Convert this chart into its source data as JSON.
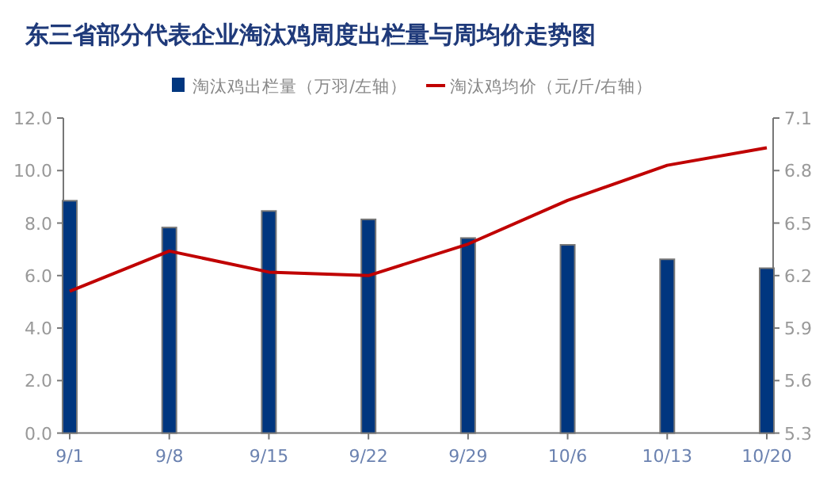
{
  "chart_data": {
    "type": "bar",
    "title": "东三省部分代表企业淘汰鸡周度出栏量与周均价走势图",
    "categories": [
      "9/1",
      "9/8",
      "9/15",
      "9/22",
      "9/29",
      "10/6",
      "10/13",
      "10/20"
    ],
    "series": [
      {
        "name": "淘汰鸡出栏量（万羽/左轴）",
        "color": "#00367f",
        "values": [
          8.85,
          7.83,
          8.46,
          8.14,
          7.43,
          7.17,
          6.62,
          6.28
        ]
      },
      {
        "name": "淘汰鸡均价（元/斤/右轴）",
        "type": "line",
        "axis": "y2",
        "color": "#c00000",
        "values": [
          6.11,
          6.34,
          6.22,
          6.2,
          6.38,
          6.63,
          6.83,
          6.93
        ]
      }
    ],
    "ylim": [
      0,
      12
    ],
    "yticks": [
      {
        "value": 0,
        "label": "0.0"
      },
      {
        "value": 2,
        "label": "2.0"
      },
      {
        "value": 4,
        "label": "4.0"
      },
      {
        "value": 6,
        "label": "6.0"
      },
      {
        "value": 8,
        "label": "8.0"
      },
      {
        "value": 10,
        "label": "10.0"
      },
      {
        "value": 12,
        "label": "12.0"
      }
    ],
    "y2lim": [
      5.3,
      7.1
    ],
    "y2ticks": [
      5.3,
      5.6,
      5.9,
      6.2,
      6.5,
      6.8,
      7.1
    ],
    "legend": "top",
    "grid": false,
    "marker": "none"
  }
}
